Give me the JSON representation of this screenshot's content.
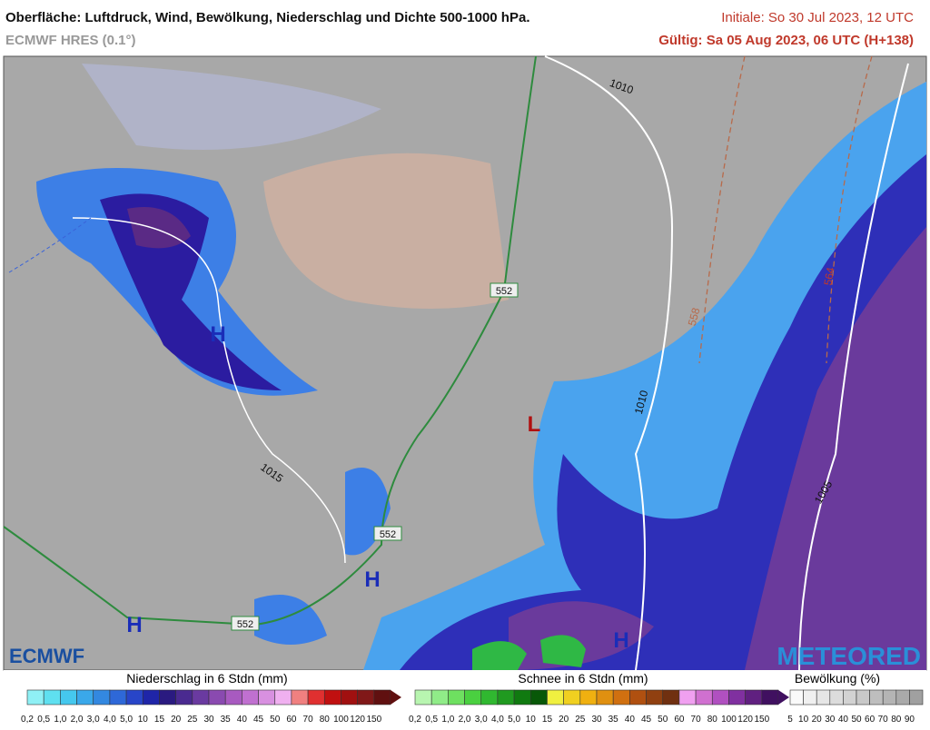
{
  "header": {
    "title": "Oberfläche: Luftdruck, Wind, Bewölkung, Niederschlag und Dichte 500-1000 hPa.",
    "model": "ECMWF HRES (0.1°)",
    "init": "Initiale: So 30 Jul 2023, 12 UTC",
    "valid": "Gültig: Sa 05 Aug 2023, 06 UTC (H+138)"
  },
  "map": {
    "isobars": [
      "1010",
      "1010",
      "1015",
      "1005"
    ],
    "thickness": [
      "552",
      "552",
      "552",
      "558",
      "564"
    ],
    "highs": [
      "H",
      "H",
      "H",
      "H"
    ],
    "lows": [
      "L"
    ],
    "logos": [
      "ECMWF",
      "METEORED"
    ]
  },
  "legend": {
    "precip": {
      "title": "Niederschlag in 6 Stdn (mm)",
      "ticks": [
        "0,2",
        "0,5",
        "1,0",
        "2,0",
        "3,0",
        "4,0",
        "5,0",
        "10",
        "15",
        "20",
        "25",
        "30",
        "35",
        "40",
        "45",
        "50",
        "60",
        "70",
        "80",
        "100",
        "120",
        "150"
      ]
    },
    "snow": {
      "title": "Schnee in 6 Stdn (mm)",
      "ticks": [
        "0,2",
        "0,5",
        "1,0",
        "2,0",
        "3,0",
        "4,0",
        "5,0",
        "10",
        "15",
        "20",
        "25",
        "30",
        "35",
        "40",
        "45",
        "50",
        "60",
        "70",
        "80",
        "100",
        "120",
        "150"
      ]
    },
    "cloud": {
      "title": "Bewölkung (%)",
      "ticks": [
        "5",
        "10",
        "20",
        "30",
        "40",
        "50",
        "60",
        "70",
        "80",
        "90"
      ]
    }
  }
}
